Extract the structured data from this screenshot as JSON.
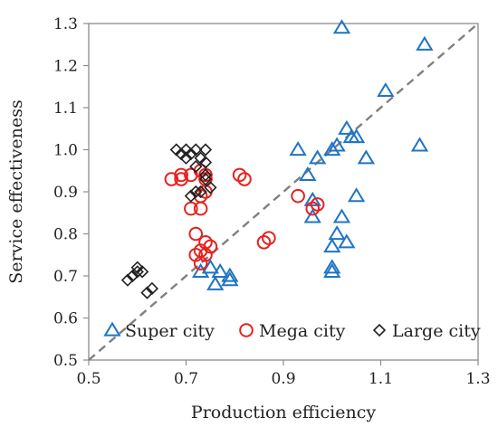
{
  "chart_data": {
    "type": "scatter",
    "title": "",
    "xlabel": "Production efficiency",
    "ylabel": "Service effectiveness",
    "xlim": [
      0.5,
      1.3
    ],
    "ylim": [
      0.5,
      1.3
    ],
    "xticks": [
      "0.5",
      "0.7",
      "0.9",
      "1.1",
      "1.3"
    ],
    "yticks": [
      "0.5",
      "0.6",
      "0.7",
      "0.8",
      "0.9",
      "1.0",
      "1.1",
      "1.2",
      "1.3"
    ],
    "grid": false,
    "legend_position": "bottom",
    "reference_line": {
      "style": "dashed",
      "color": "#808080",
      "from": [
        0.5,
        0.5
      ],
      "to": [
        1.3,
        1.3
      ]
    },
    "series": [
      {
        "name": "Super city",
        "marker": "triangle",
        "color": "#1f74c4",
        "points": [
          [
            1.02,
            1.29
          ],
          [
            1.19,
            1.25
          ],
          [
            1.11,
            1.14
          ],
          [
            1.03,
            1.05
          ],
          [
            1.04,
            1.03
          ],
          [
            1.05,
            1.03
          ],
          [
            1.18,
            1.01
          ],
          [
            1.0,
            1.0
          ],
          [
            1.01,
            1.01
          ],
          [
            0.93,
            1.0
          ],
          [
            1.07,
            0.98
          ],
          [
            0.97,
            0.98
          ],
          [
            0.95,
            0.94
          ],
          [
            0.96,
            0.88
          ],
          [
            0.96,
            0.84
          ],
          [
            1.05,
            0.89
          ],
          [
            1.02,
            0.84
          ],
          [
            1.01,
            0.8
          ],
          [
            1.03,
            0.78
          ],
          [
            1.0,
            0.77
          ],
          [
            1.0,
            0.72
          ],
          [
            1.0,
            0.71
          ],
          [
            0.73,
            0.71
          ],
          [
            0.75,
            0.72
          ],
          [
            0.77,
            0.71
          ],
          [
            0.76,
            0.68
          ],
          [
            0.79,
            0.7
          ],
          [
            0.79,
            0.69
          ]
        ]
      },
      {
        "name": "Mega city",
        "marker": "circle",
        "color": "#e8201e",
        "points": [
          [
            0.67,
            0.93
          ],
          [
            0.69,
            0.94
          ],
          [
            0.69,
            0.93
          ],
          [
            0.71,
            0.94
          ],
          [
            0.73,
            0.95
          ],
          [
            0.74,
            0.94
          ],
          [
            0.74,
            0.93
          ],
          [
            0.81,
            0.94
          ],
          [
            0.82,
            0.93
          ],
          [
            0.73,
            0.89
          ],
          [
            0.74,
            0.9
          ],
          [
            0.71,
            0.86
          ],
          [
            0.73,
            0.86
          ],
          [
            0.93,
            0.89
          ],
          [
            0.96,
            0.86
          ],
          [
            0.97,
            0.87
          ],
          [
            0.72,
            0.8
          ],
          [
            0.74,
            0.78
          ],
          [
            0.75,
            0.77
          ],
          [
            0.86,
            0.78
          ],
          [
            0.87,
            0.79
          ],
          [
            0.72,
            0.75
          ],
          [
            0.73,
            0.76
          ],
          [
            0.74,
            0.75
          ],
          [
            0.73,
            0.73
          ]
        ]
      },
      {
        "name": "Large city",
        "marker": "diamond",
        "color": "#222222",
        "points": [
          [
            0.68,
            1.0
          ],
          [
            0.7,
            1.0
          ],
          [
            0.71,
            0.99
          ],
          [
            0.72,
            1.0
          ],
          [
            0.74,
            1.0
          ],
          [
            0.69,
            0.99
          ],
          [
            0.7,
            0.98
          ],
          [
            0.73,
            0.98
          ],
          [
            0.74,
            0.97
          ],
          [
            0.72,
            0.96
          ],
          [
            0.74,
            0.94
          ],
          [
            0.74,
            0.93
          ],
          [
            0.75,
            0.91
          ],
          [
            0.73,
            0.9
          ],
          [
            0.71,
            0.89
          ],
          [
            0.72,
            0.9
          ],
          [
            0.58,
            0.69
          ],
          [
            0.59,
            0.7
          ],
          [
            0.6,
            0.71
          ],
          [
            0.61,
            0.71
          ],
          [
            0.6,
            0.72
          ],
          [
            0.62,
            0.66
          ],
          [
            0.63,
            0.67
          ]
        ]
      }
    ]
  }
}
